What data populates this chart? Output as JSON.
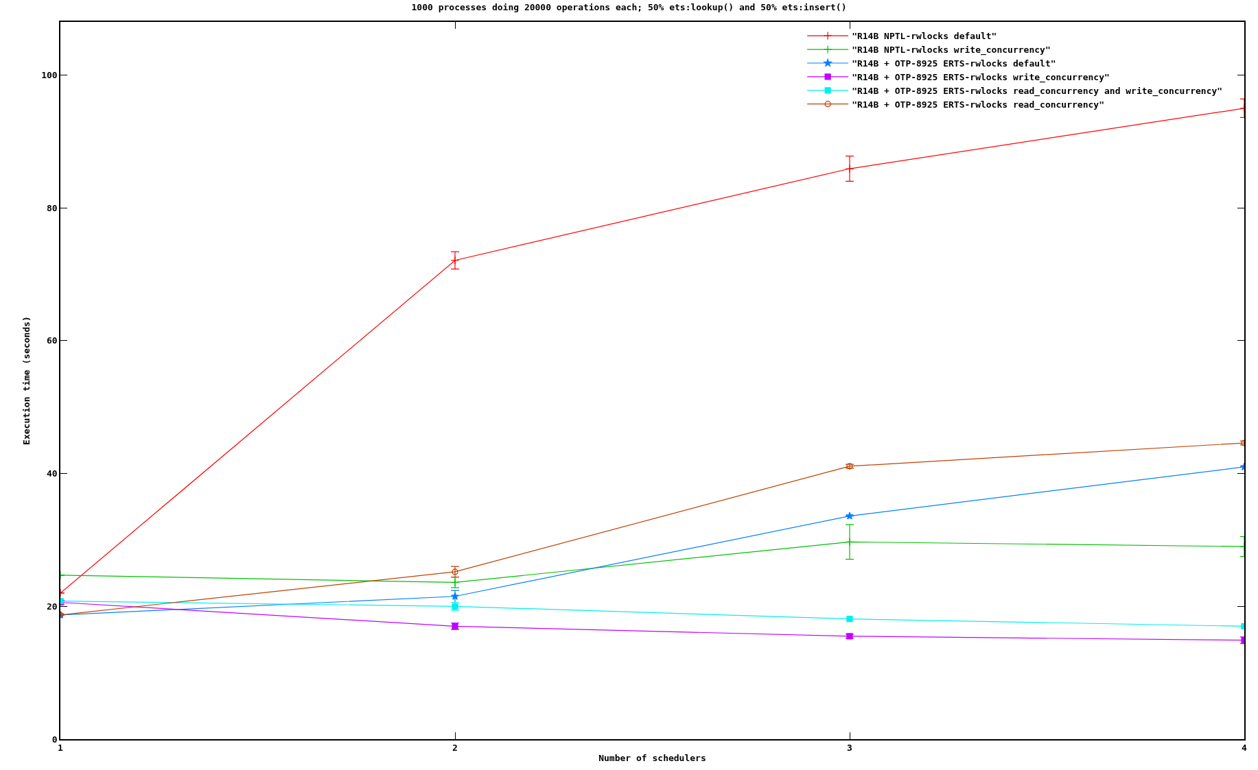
{
  "chart_data": {
    "type": "line",
    "title": "1000 processes doing 20000 operations each; 50% ets:lookup() and 50% ets:insert()",
    "xlabel": "Number of schedulers",
    "ylabel": "Execution time (seconds)",
    "x": [
      1,
      2,
      3,
      4
    ],
    "xlim": [
      1,
      4
    ],
    "xticks": [
      1,
      2,
      3,
      4
    ],
    "ylim": [
      0,
      108
    ],
    "yticks": [
      0,
      20,
      40,
      60,
      80,
      100
    ],
    "grid": false,
    "legend": "top right",
    "series": [
      {
        "name": "\"R14B NPTL-rwlocks default\"",
        "color": "#ff0000",
        "marker": "cross",
        "values": [
          22.0,
          72.1,
          85.9,
          95.0
        ],
        "errors": [
          null,
          1.3,
          1.9,
          1.4
        ]
      },
      {
        "name": "\"R14B NPTL-rwlocks write_concurrency\"",
        "color": "#00c000",
        "marker": "cross",
        "values": [
          24.7,
          23.6,
          29.7,
          29.0
        ],
        "errors": [
          null,
          0.8,
          2.6,
          1.5
        ]
      },
      {
        "name": "\"R14B + OTP-8925 ERTS-rwlocks default\"",
        "color": "#0080ff",
        "marker": "star",
        "values": [
          18.7,
          21.5,
          33.6,
          41.0
        ],
        "errors": [
          null,
          0.9,
          null,
          null
        ]
      },
      {
        "name": "\"R14B + OTP-8925 ERTS-rwlocks write_concurrency\"",
        "color": "#c000ff",
        "marker": "square",
        "values": [
          20.6,
          17.0,
          15.5,
          14.9
        ],
        "errors": [
          0.3,
          0.5,
          0.3,
          0.5
        ]
      },
      {
        "name": "\"R14B + OTP-8925 ERTS-rwlocks read_concurrency and write_concurrency\"",
        "color": "#00eeee",
        "marker": "square",
        "values": [
          20.8,
          20.0,
          18.1,
          17.0
        ],
        "errors": [
          null,
          0.6,
          null,
          null
        ]
      },
      {
        "name": "\"R14B + OTP-8925 ERTS-rwlocks read_concurrency\"",
        "color": "#c04000",
        "marker": "circle",
        "values": [
          18.7,
          25.2,
          41.1,
          44.6
        ],
        "errors": [
          null,
          0.8,
          0.3,
          0.3
        ]
      }
    ]
  }
}
